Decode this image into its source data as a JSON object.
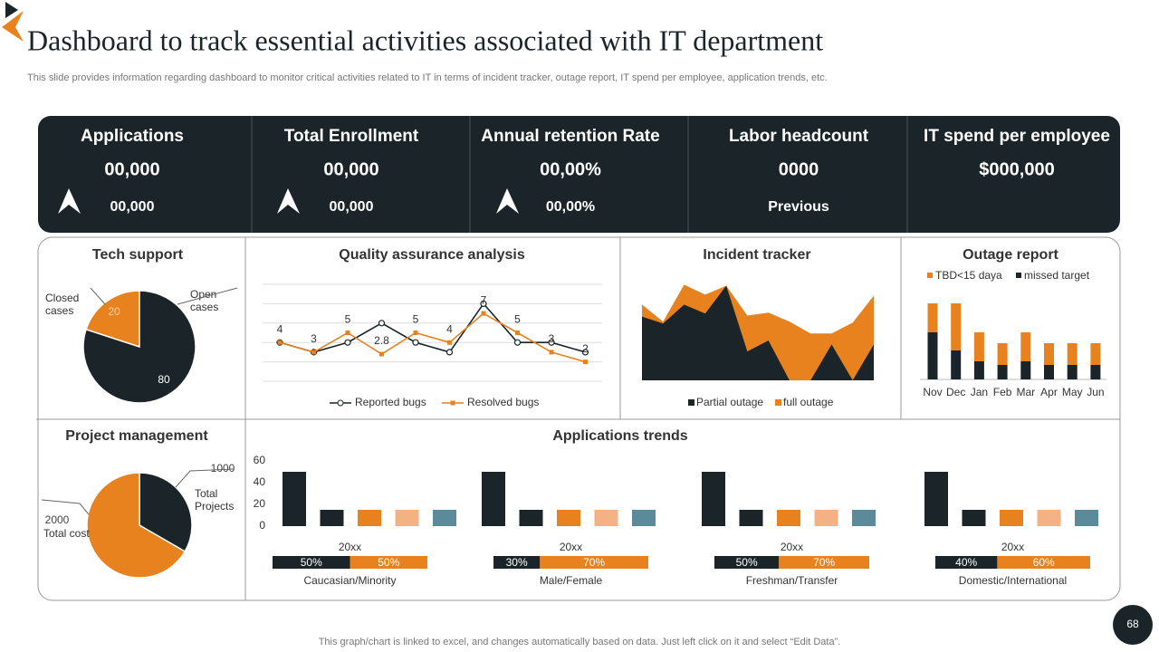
{
  "header": {
    "title": "Dashboard to track essential activities associated with IT department",
    "subtitle": "This slide provides information regarding dashboard to monitor critical activities related to IT in terms of incident tracker, outage report, IT spend per employee, application trends, etc."
  },
  "kpis": [
    {
      "title": "Applications",
      "value": "00,000",
      "sub": "00,000"
    },
    {
      "title": "Total Enrollment",
      "value": "00,000",
      "sub": "00,000"
    },
    {
      "title": "Annual retention Rate",
      "value": "00,00%",
      "sub": "00,00%"
    },
    {
      "title": "Labor headcount",
      "value": "0000",
      "sub": "Previous"
    },
    {
      "title": "IT spend per employee",
      "value": "$000,000"
    }
  ],
  "chart_data": [
    {
      "type": "pie",
      "title": "Tech support",
      "categories": [
        "Closed cases",
        "Open cases"
      ],
      "values": [
        20,
        80
      ],
      "colors": [
        "#e8821e",
        "#1b2529"
      ]
    },
    {
      "type": "line",
      "title": "Quality assurance analysis",
      "ylim": [
        0,
        10
      ],
      "yticks": [
        0,
        2,
        4,
        6,
        8,
        10
      ],
      "grid": true,
      "series": [
        {
          "name": "Reported bugs",
          "color": "#1b2529",
          "values": [
            4,
            3,
            4,
            6,
            4,
            3,
            8,
            4,
            4,
            3
          ]
        },
        {
          "name": "Resolved bugs",
          "color": "#e8821e",
          "values": [
            4,
            3,
            5,
            2.8,
            5,
            4,
            7,
            5,
            3,
            2
          ],
          "data_labels": true
        }
      ]
    },
    {
      "type": "area",
      "title": "Incident tracker",
      "ylim": [
        0,
        100
      ],
      "series": [
        {
          "name": "Partial outage",
          "color": "#1b2529",
          "values": [
            64,
            57,
            76,
            67,
            95,
            29,
            40,
            0,
            0,
            36,
            0,
            36
          ]
        },
        {
          "name": "full outage",
          "color": "#e8821e",
          "values": [
            76,
            59,
            96,
            86,
            95,
            65,
            68,
            59,
            47,
            47,
            58,
            85
          ]
        }
      ]
    },
    {
      "type": "stacked_bar",
      "title": "Outage report",
      "ylim": [
        0,
        50
      ],
      "categories": [
        "Nov",
        "Dec",
        "Jan",
        "Feb",
        "Mar",
        "Apr",
        "May",
        "Jun"
      ],
      "series": [
        {
          "name": "TBD<15 daya",
          "color": "#e8821e",
          "values": [
            16,
            26,
            16,
            12,
            16,
            12,
            12,
            12
          ]
        },
        {
          "name": "missed target",
          "color": "#1b2529",
          "values": [
            26,
            16,
            10,
            8,
            10,
            8,
            8,
            8
          ]
        }
      ]
    },
    {
      "type": "pie",
      "title": "Project management",
      "categories": [
        "Total Projects",
        "Total cost"
      ],
      "values": [
        1000,
        2000
      ],
      "colors": [
        "#1b2529",
        "#e8821e"
      ]
    },
    {
      "type": "grouped_bar",
      "title": "Applications trends",
      "ylim": [
        0,
        60
      ],
      "yticks": [
        0,
        20,
        40,
        60
      ],
      "categories": [
        "20xx",
        "20xx",
        "20xx",
        "20xx"
      ],
      "series": [
        {
          "color": "#1b2529",
          "values": [
            50,
            50,
            50,
            50
          ]
        },
        {
          "color": "#1b2529",
          "values": [
            15,
            15,
            15,
            15
          ]
        },
        {
          "color": "#e8821e",
          "values": [
            15,
            15,
            15,
            15
          ]
        },
        {
          "color": "#f4b183",
          "values": [
            15,
            15,
            15,
            15
          ]
        },
        {
          "color": "#5b8a9a",
          "values": [
            15,
            15,
            15,
            15
          ]
        }
      ],
      "splits": [
        {
          "label": "Caucasian/Minority",
          "values": [
            50,
            50
          ],
          "value_labels": [
            "50%",
            "50%"
          ]
        },
        {
          "label": "Male/Female",
          "values": [
            30,
            70
          ],
          "value_labels": [
            "30%",
            "70%"
          ]
        },
        {
          "label": "Freshman/Transfer",
          "values": [
            50,
            70
          ],
          "value_labels": [
            "50%",
            "70%"
          ]
        },
        {
          "label": "Domestic/International",
          "values": [
            40,
            60
          ],
          "value_labels": [
            "40%",
            "60%"
          ]
        }
      ]
    }
  ],
  "footer": "This graph/chart is linked to excel, and changes automatically based on data. Just left click on it and select “Edit Data”.",
  "page_number": "68"
}
